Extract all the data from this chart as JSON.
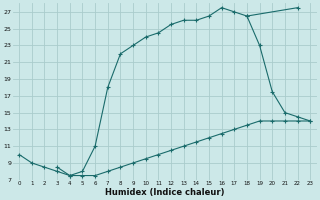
{
  "xlabel": "Humidex (Indice chaleur)",
  "background_color": "#cce8e8",
  "grid_color": "#aacccc",
  "line_color": "#1a6b6b",
  "xlim": [
    -0.5,
    23.5
  ],
  "ylim": [
    7,
    28
  ],
  "yticks": [
    7,
    9,
    11,
    13,
    15,
    17,
    19,
    21,
    23,
    25,
    27
  ],
  "xticks": [
    0,
    1,
    2,
    3,
    4,
    5,
    6,
    7,
    8,
    9,
    10,
    11,
    12,
    13,
    14,
    15,
    16,
    17,
    18,
    19,
    20,
    21,
    22,
    23
  ],
  "curve1_x": [
    0,
    1,
    2,
    3,
    4,
    5,
    6,
    7,
    8,
    9,
    10,
    11,
    12,
    13,
    14,
    15,
    16,
    17,
    18,
    22
  ],
  "curve1_y": [
    10,
    9,
    8.5,
    8.0,
    7.5,
    8.0,
    11,
    18,
    22,
    23,
    24,
    24.5,
    25.5,
    26,
    26,
    26.5,
    27.5,
    27,
    26.5,
    27.5
  ],
  "curve2_x": [
    3,
    4,
    5,
    6,
    7,
    8,
    9,
    10,
    11,
    12,
    13,
    14,
    15,
    16,
    17,
    18,
    19,
    20,
    21,
    22,
    23
  ],
  "curve2_y": [
    8.5,
    7.5,
    7.5,
    7.5,
    8.0,
    8.5,
    9.0,
    9.5,
    10.0,
    10.5,
    11.0,
    11.5,
    12.0,
    12.5,
    13.0,
    13.5,
    14.0,
    14.0,
    14.0,
    14.0,
    14.0
  ],
  "curve3_x": [
    18,
    19,
    20,
    21,
    22,
    23
  ],
  "curve3_y": [
    26.5,
    23,
    17.5,
    15,
    14.5,
    14.0
  ]
}
